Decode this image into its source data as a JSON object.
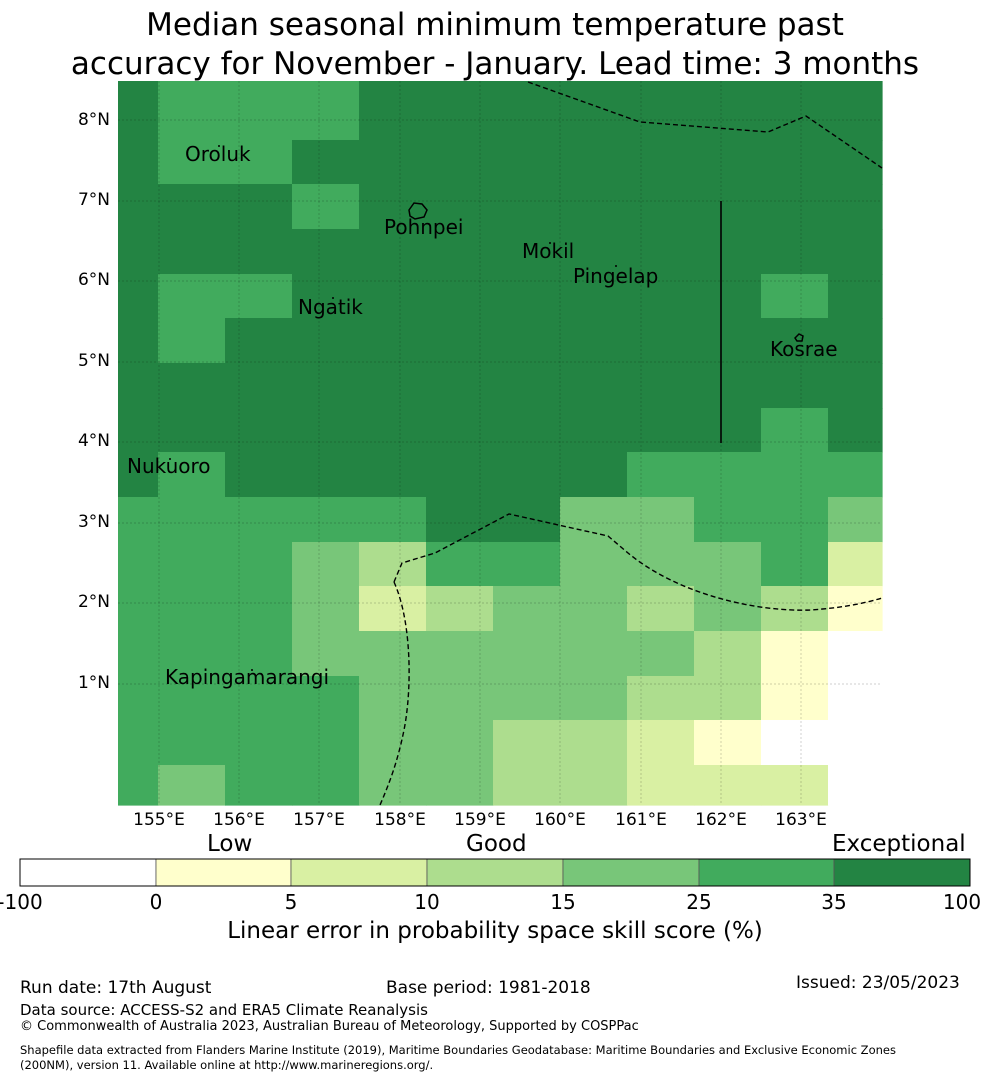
{
  "title": {
    "line1": "Median seasonal minimum temperature past",
    "line2": "accuracy for November - January. Lead time: 3 months"
  },
  "map": {
    "lon_range": [
      154.5,
      164.0
    ],
    "lat_range": [
      -0.5,
      8.5
    ],
    "lat_ticks": [
      "1°N",
      "2°N",
      "3°N",
      "4°N",
      "5°N",
      "6°N",
      "7°N",
      "8°N"
    ],
    "lon_ticks": [
      "155°E",
      "156°E",
      "157°E",
      "158°E",
      "159°E",
      "160°E",
      "161°E",
      "162°E",
      "163°E"
    ],
    "places": [
      "Oroluk",
      "Pohnpei",
      "Mokil",
      "Pingelap",
      "Ngatik",
      "Kosrae",
      "Nukuoro",
      "Kapingamarangi"
    ]
  },
  "colorbar": {
    "categories": [
      "Low",
      "Good",
      "Exceptional"
    ],
    "ticks": [
      "-100",
      "0",
      "5",
      "10",
      "15",
      "25",
      "35",
      "100"
    ],
    "colors": [
      "#ffffff",
      "#ffffcc",
      "#d9f0a3",
      "#addd8e",
      "#78c679",
      "#41ab5d",
      "#238443"
    ],
    "title": "Linear error in probability space skill score (%)"
  },
  "footer": {
    "run_date": "Run date: 17th August",
    "base_period": "Base period: 1981-2018",
    "issued": "Issued: 23/05/2023",
    "data_source": "Data source: ACCESS-S2 and ERA5 Climate Reanalysis",
    "copyright": "© Commonwealth of Australia 2023, Australian Bureau of Meteorology, Supported by COSPPac",
    "shapefile_1": "Shapefile data extracted from Flanders Marine Institute (2019), Maritime Boundaries Geodatabase: Maritime Boundaries and Exclusive Economic Zones",
    "shapefile_2": "(200NM), version 11. Available online at http://www.marineregions.org/."
  }
}
